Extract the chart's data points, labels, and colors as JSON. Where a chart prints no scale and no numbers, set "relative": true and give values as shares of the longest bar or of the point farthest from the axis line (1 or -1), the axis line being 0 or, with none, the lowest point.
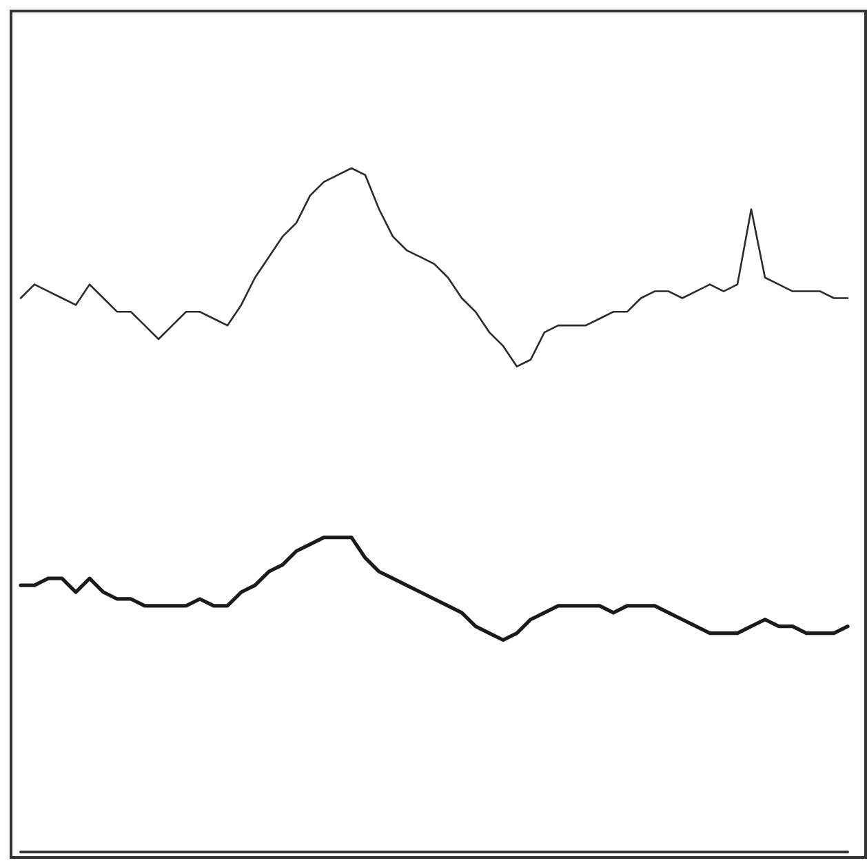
{
  "chart_data": {
    "type": "line",
    "relative": true,
    "grid": false,
    "marker": "none",
    "line_style": "solid",
    "categories": [
      null,
      null,
      null,
      null,
      null,
      null,
      null,
      null,
      null,
      null,
      null,
      null,
      null,
      null,
      null,
      null,
      null,
      null,
      null,
      null,
      null,
      null,
      null,
      null,
      null,
      null,
      null,
      null,
      null,
      null,
      null,
      null,
      null,
      null,
      null,
      null,
      null,
      null,
      null,
      null,
      null,
      null,
      null,
      null,
      null,
      null,
      null,
      null,
      null,
      null,
      null,
      null,
      null,
      null,
      null,
      null,
      null,
      null,
      null,
      null,
      null
    ],
    "series": [
      {
        "color": "#2a2a2a",
        "values": [
          0.81,
          0.83,
          0.82,
          0.81,
          0.8,
          0.83,
          0.81,
          0.79,
          0.79,
          0.77,
          0.75,
          0.77,
          0.79,
          0.79,
          0.78,
          0.77,
          0.8,
          0.84,
          0.87,
          0.9,
          0.92,
          0.96,
          0.98,
          0.99,
          1,
          0.99,
          0.94,
          0.9,
          0.88,
          0.87,
          0.86,
          0.84,
          0.81,
          0.79,
          0.76,
          0.74,
          0.71,
          0.72,
          0.76,
          0.77,
          0.77,
          0.77,
          0.78,
          0.79,
          0.79,
          0.81,
          0.82,
          0.82,
          0.81,
          0.82,
          0.83,
          0.82,
          0.83,
          0.94,
          0.84,
          0.83,
          0.82,
          0.82,
          0.82,
          0.81,
          0.81
        ]
      },
      {
        "color": "#1a1a1a",
        "values": [
          0.39,
          0.39,
          0.4,
          0.4,
          0.38,
          0.4,
          0.38,
          0.37,
          0.37,
          0.36,
          0.36,
          0.36,
          0.36,
          0.37,
          0.36,
          0.36,
          0.38,
          0.39,
          0.41,
          0.42,
          0.44,
          0.45,
          0.46,
          0.46,
          0.46,
          0.43,
          0.41,
          0.4,
          0.39,
          0.38,
          0.37,
          0.36,
          0.35,
          0.33,
          0.32,
          0.31,
          0.32,
          0.34,
          0.35,
          0.36,
          0.36,
          0.36,
          0.36,
          0.35,
          0.36,
          0.36,
          0.36,
          0.35,
          0.34,
          0.33,
          0.32,
          0.32,
          0.32,
          0.33,
          0.34,
          0.33,
          0.33,
          0.32,
          0.32,
          0.32,
          0.33
        ]
      }
    ]
  }
}
